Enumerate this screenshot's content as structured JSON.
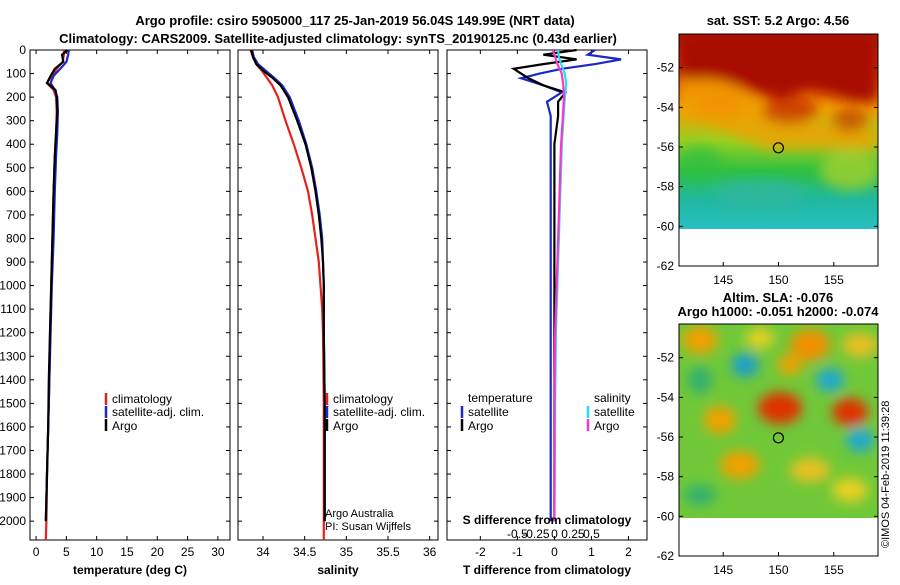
{
  "header": {
    "title1": "Argo profile: csiro 5905000_117 25-Jan-2019 56.04S 149.99E (NRT data)",
    "title2": "Climatology: CARS2009. Satellite-adjusted climatology: synTS_20190125.nc (0.43d earlier)"
  },
  "colors": {
    "climatology": "#e8201b",
    "satellite": "#1a28c8",
    "argo": "#000000",
    "argo_s": "#ff33cc",
    "sat_s": "#22e0f0"
  },
  "chart_data": [
    {
      "type": "line",
      "id": "temperature",
      "xlabel": "temperature (deg C)",
      "ylabel": "",
      "xlim": [
        -1,
        32
      ],
      "ylim": [
        2080,
        0
      ],
      "xticks": [
        "0",
        "5",
        "10",
        "15",
        "20",
        "25",
        "30"
      ],
      "yticks": [
        "0",
        "100",
        "200",
        "300",
        "400",
        "500",
        "600",
        "700",
        "800",
        "900",
        "1000",
        "1100",
        "1200",
        "1300",
        "1400",
        "1500",
        "1600",
        "1700",
        "1800",
        "1900",
        "2000"
      ],
      "legend": [
        "climatology",
        "satellite-adj. clim.",
        "Argo"
      ],
      "series": [
        {
          "name": "climatology",
          "depth": [
            0,
            20,
            50,
            80,
            110,
            140,
            170,
            200,
            260,
            350,
            450,
            600,
            800,
            1000,
            1200,
            1400,
            1600,
            1800,
            2000,
            2080
          ],
          "values": [
            4.6,
            4.6,
            4.4,
            3.4,
            2.6,
            1.8,
            2.9,
            3.3,
            3.4,
            3.3,
            3.1,
            2.9,
            2.7,
            2.5,
            2.3,
            2.2,
            2.0,
            1.8,
            1.7,
            1.6
          ]
        },
        {
          "name": "satellite-adj. clim.",
          "depth": [
            0,
            20,
            50,
            80,
            110,
            140,
            170,
            200,
            260,
            350,
            450,
            600,
            800,
            1000,
            1200,
            1400,
            1600,
            1800,
            2000
          ],
          "values": [
            5.4,
            5.3,
            5.0,
            4.0,
            2.9,
            2.4,
            3.1,
            3.5,
            3.6,
            3.5,
            3.3,
            3.1,
            2.9,
            2.6,
            2.4,
            2.2,
            2.0,
            1.8,
            1.6
          ]
        },
        {
          "name": "Argo",
          "depth": [
            0,
            20,
            50,
            80,
            110,
            140,
            170,
            200,
            260,
            350,
            450,
            600,
            800,
            1000,
            1200,
            1400,
            1600,
            1800,
            2000
          ],
          "values": [
            5.2,
            4.3,
            4.5,
            3.1,
            2.4,
            1.8,
            3.2,
            3.4,
            3.5,
            3.3,
            3.1,
            2.9,
            2.7,
            2.5,
            2.3,
            2.1,
            2.0,
            1.8,
            1.6
          ]
        }
      ]
    },
    {
      "type": "line",
      "id": "salinity",
      "xlabel": "salinity",
      "xlim": [
        33.7,
        36.1
      ],
      "ylim": [
        2080,
        0
      ],
      "xticks": [
        "34",
        "34.5",
        "35",
        "35.5",
        "36"
      ],
      "legend": [
        "climatology",
        "satellite-adj. clim.",
        "Argo"
      ],
      "annotation": [
        "Argo Australia",
        "PI: Susan Wijffels"
      ],
      "series": [
        {
          "name": "climatology",
          "depth": [
            0,
            30,
            60,
            90,
            120,
            150,
            200,
            300,
            400,
            500,
            600,
            700,
            800,
            900,
            1000,
            1100,
            1200,
            1500,
            1800,
            2080
          ],
          "values": [
            33.85,
            33.88,
            33.92,
            33.99,
            34.05,
            34.11,
            34.18,
            34.27,
            34.37,
            34.46,
            34.54,
            34.59,
            34.63,
            34.67,
            34.69,
            34.71,
            34.72,
            34.73,
            34.73,
            34.73
          ]
        },
        {
          "name": "satellite-adj. clim.",
          "depth": [
            0,
            30,
            60,
            90,
            120,
            150,
            200,
            300,
            400,
            500,
            600,
            700,
            800,
            900,
            1000,
            1200,
            1500,
            1800,
            2000
          ],
          "values": [
            33.87,
            33.89,
            33.94,
            34.04,
            34.14,
            34.23,
            34.32,
            34.43,
            34.52,
            34.59,
            34.64,
            34.68,
            34.71,
            34.72,
            34.73,
            34.73,
            34.74,
            34.74,
            34.74
          ]
        },
        {
          "name": "Argo",
          "depth": [
            0,
            30,
            60,
            90,
            120,
            150,
            200,
            300,
            400,
            500,
            600,
            700,
            800,
            900,
            1000,
            1200,
            1500,
            1800,
            2000
          ],
          "values": [
            33.86,
            33.88,
            33.92,
            34.01,
            34.12,
            34.21,
            34.3,
            34.41,
            34.51,
            34.58,
            34.63,
            34.67,
            34.7,
            34.72,
            34.73,
            34.73,
            34.74,
            34.74,
            34.74
          ]
        }
      ]
    },
    {
      "type": "line",
      "id": "differences",
      "xlabel": "T difference from climatology",
      "xlabel_top": "S difference from climatology",
      "xlim": [
        -2.9,
        2.5
      ],
      "ylim": [
        2080,
        0
      ],
      "xticks": [
        "-2",
        "-1",
        "0",
        "1",
        "2"
      ],
      "xticks_s": [
        "-0.5",
        "-0.25",
        "0",
        "0.25",
        "0.5"
      ],
      "legend_t_title": "temperature",
      "legend_s_title": "salinity",
      "legend_t": [
        "satellite",
        "Argo"
      ],
      "legend_s": [
        "satellite",
        "Argo"
      ],
      "series": [
        {
          "name": "T satellite",
          "depth": [
            0,
            20,
            40,
            60,
            80,
            100,
            120,
            150,
            180,
            220,
            280,
            400,
            600,
            800,
            1000,
            1500,
            2000
          ],
          "values": [
            1.1,
            0.9,
            1.8,
            1.1,
            0.2,
            -0.4,
            -0.9,
            -0.3,
            0.2,
            -0.2,
            -0.1,
            -0.1,
            -0.1,
            -0.1,
            -0.1,
            -0.1,
            -0.1
          ]
        },
        {
          "name": "T Argo",
          "depth": [
            0,
            20,
            40,
            60,
            80,
            100,
            120,
            150,
            180,
            220,
            280,
            400,
            600,
            800,
            1000,
            1500,
            2000
          ],
          "values": [
            0.6,
            -0.3,
            0.6,
            -0.3,
            -1.1,
            -0.9,
            -0.7,
            -0.3,
            0.3,
            0.1,
            0.1,
            0.0,
            0.0,
            0.0,
            0.0,
            0.0,
            0.0
          ]
        },
        {
          "name": "S satellite",
          "depth": [
            0,
            30,
            60,
            100,
            150,
            200,
            300,
            400,
            500,
            600,
            700,
            800,
            900,
            1000,
            1100,
            1200,
            1500,
            1800,
            2000
          ],
          "values": [
            0.05,
            0.06,
            0.09,
            0.14,
            0.16,
            0.14,
            0.12,
            0.1,
            0.09,
            0.08,
            0.07,
            0.06,
            0.05,
            0.04,
            0.03,
            0.02,
            0.01,
            0.005,
            0.0
          ]
        },
        {
          "name": "S Argo",
          "depth": [
            0,
            30,
            60,
            100,
            150,
            200,
            300,
            400,
            500,
            600,
            700,
            800,
            900,
            1000,
            1100,
            1200,
            1500,
            1800,
            2000
          ],
          "values": [
            -0.02,
            0.01,
            0.04,
            0.1,
            0.12,
            0.13,
            0.11,
            0.09,
            0.08,
            0.07,
            0.06,
            0.05,
            0.04,
            0.03,
            0.02,
            0.01,
            0.0,
            0.0,
            0.0
          ]
        }
      ]
    },
    {
      "type": "heatmap",
      "id": "sst-map",
      "title": "sat. SST: 5.2 Argo: 4.56",
      "xticks": [
        "145",
        "150",
        "155"
      ],
      "yticks": [
        "-52",
        "-54",
        "-56",
        "-58",
        "-60",
        "-62"
      ],
      "xlim": [
        141,
        159
      ],
      "ylim": [
        -62,
        -50.3
      ],
      "argo_lon": 149.99,
      "argo_lat": -56.04
    },
    {
      "type": "heatmap",
      "id": "sla-map",
      "title1": "Altim. SLA: -0.076",
      "title2": "Argo h1000: -0.051 h2000: -0.074",
      "xticks": [
        "145",
        "150",
        "155"
      ],
      "yticks": [
        "-52",
        "-54",
        "-56",
        "-58",
        "-60",
        "-62"
      ],
      "xlim": [
        141,
        159
      ],
      "ylim": [
        -62,
        -50.3
      ],
      "argo_lon": 149.99,
      "argo_lat": -56.04
    }
  ],
  "footer": {
    "watermark": "©IMOS 04-Feb-2019 11:39:28"
  }
}
